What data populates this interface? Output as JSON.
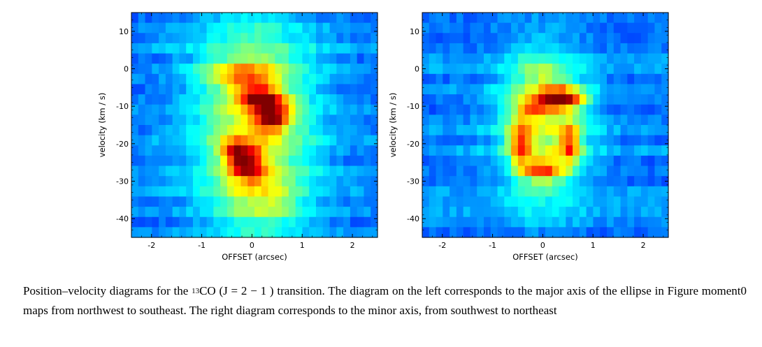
{
  "chart_data": [
    {
      "type": "heatmap",
      "title": "",
      "xlabel": "OFFSET (arcsec)",
      "ylabel": "velocity (km / s)",
      "xlim": [
        -2.4,
        2.5
      ],
      "ylim": [
        15,
        -45
      ],
      "xticks": [
        -2,
        -1,
        0,
        1,
        2
      ],
      "yticks": [
        -40,
        -30,
        -20,
        -10,
        0,
        10
      ],
      "colormap": "jet",
      "background_level": 0.25,
      "blobs": [
        {
          "x": 0.05,
          "v": -15,
          "sx": 0.85,
          "sv": 20,
          "amp": 0.35
        },
        {
          "x": -0.2,
          "v": -1,
          "sx": 0.5,
          "sv": 2.5,
          "amp": 0.18
        },
        {
          "x": 0.25,
          "v": -35,
          "sx": 0.5,
          "sv": 5,
          "amp": 0.15
        },
        {
          "x": -0.1,
          "v": -25,
          "sx": 0.25,
          "sv": 3.5,
          "amp": 0.45
        },
        {
          "x": -0.4,
          "v": -22,
          "sx": 0.2,
          "sv": 2.5,
          "amp": 0.25
        },
        {
          "x": 0.4,
          "v": -13,
          "sx": 0.25,
          "sv": 2.5,
          "amp": 0.5
        },
        {
          "x": 0.2,
          "v": -8,
          "sx": 0.3,
          "sv": 2.0,
          "amp": 0.5
        },
        {
          "x": -0.1,
          "v": -3,
          "sx": 0.35,
          "sv": 3,
          "amp": 0.12
        }
      ]
    },
    {
      "type": "heatmap",
      "title": "",
      "xlabel": "OFFSET (arcsec)",
      "ylabel": "velocity (km / s)",
      "xlim": [
        -2.4,
        2.5
      ],
      "ylim": [
        15,
        -45
      ],
      "xticks": [
        -2,
        -1,
        0,
        1,
        2
      ],
      "yticks": [
        -40,
        -30,
        -20,
        -10,
        0,
        10
      ],
      "colormap": "jet",
      "background_level": 0.25,
      "blobs": [
        {
          "x": 0.0,
          "v": -15,
          "sx": 0.6,
          "sv": 14,
          "amp": 0.32
        },
        {
          "x": 0.0,
          "v": -27,
          "sx": 0.3,
          "sv": 2,
          "amp": 0.4
        },
        {
          "x": -0.45,
          "v": -20,
          "sx": 0.15,
          "sv": 4,
          "amp": 0.4
        },
        {
          "x": 0.55,
          "v": -20,
          "sx": 0.15,
          "sv": 4,
          "amp": 0.4
        },
        {
          "x": 0.4,
          "v": -8,
          "sx": 0.3,
          "sv": 2.0,
          "amp": 0.55
        },
        {
          "x": -0.2,
          "v": -10,
          "sx": 0.25,
          "sv": 2.0,
          "amp": 0.3
        },
        {
          "x": 0.0,
          "v": -2,
          "sx": 0.3,
          "sv": 2.5,
          "amp": 0.1
        }
      ]
    }
  ],
  "caption": {
    "text_before": "Position–velocity diagrams for the ",
    "isotope_mass": "13",
    "text_after": "CO (J = 2 − 1 ) transition. The diagram on the left corresponds to the major axis of the ellipse in Figure moment0 maps from northwest to southeast. The right diagram corresponds to the minor axis, from southwest to northeast"
  }
}
